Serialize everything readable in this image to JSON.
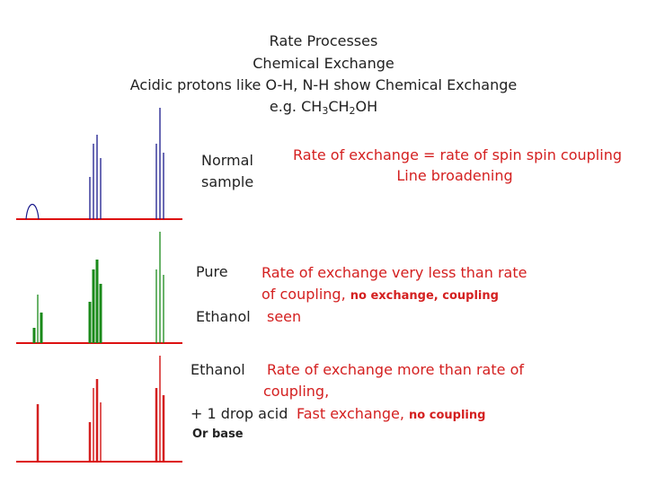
{
  "title": {
    "line1": "Rate Processes",
    "line2": "Chemical Exchange",
    "line3": "Acidic protons like O-H, N-H show Chemical Exchange",
    "line4_prefix": "e.g. CH",
    "sub1": "3",
    "mid": "CH",
    "sub2": "2",
    "suffix": "OH"
  },
  "panels": {
    "normal": {
      "label_line1": "Normal",
      "label_line2": "sample",
      "desc_line1": "Rate of exchange = rate of spin spin coupling",
      "desc_line2": "Line broadening",
      "color": "#1a1a8c"
    },
    "pure": {
      "label_line1": "Pure",
      "label_line2": "Ethanol",
      "desc_line1": "Rate of exchange very less than rate",
      "desc_line2a": "of coupling,",
      "desc_line2b": "no exchange, coupling",
      "desc_line3": "seen",
      "color": "#1a8a1a"
    },
    "acid": {
      "label_line1": "Ethanol",
      "label_line2": "+ 1 drop acid",
      "label_line3": "Or base",
      "desc_line1": "Rate of exchange more than rate of",
      "desc_line2": "coupling,",
      "desc_line3a": "Fast exchange,",
      "desc_line3b": "no coupling",
      "color": "#d42020"
    }
  },
  "baseline_color": "#dd1111"
}
